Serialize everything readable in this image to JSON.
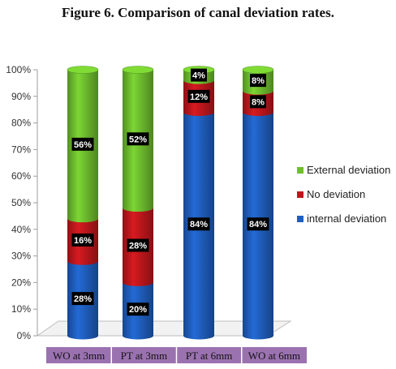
{
  "chart_data": {
    "type": "bar",
    "stacked": true,
    "title": "Figure 6. Comparison of canal deviation rates.",
    "categories": [
      "WO at 3mm",
      "PT at 3mm",
      "PT at 6mm",
      "WO at 6mm"
    ],
    "series": [
      {
        "name": "internal deviation",
        "color": "#1f5fbf",
        "values": [
          28,
          20,
          84,
          84
        ],
        "labels": [
          "28%",
          "20%",
          "84%",
          "84%"
        ]
      },
      {
        "name": "No deviation",
        "color": "#c0171d",
        "values": [
          16,
          28,
          12,
          8
        ],
        "labels": [
          "16%",
          "28%",
          "12%",
          "8%"
        ]
      },
      {
        "name": "External deviation",
        "color": "#6fbf2e",
        "values": [
          56,
          52,
          4,
          8
        ],
        "labels": [
          "56%",
          "52%",
          "4%",
          "8%"
        ]
      }
    ],
    "legend_order": [
      "External deviation",
      "No deviation",
      "internal deviation"
    ],
    "y_ticks": [
      "0%",
      "10%",
      "20%",
      "30%",
      "40%",
      "50%",
      "60%",
      "70%",
      "80%",
      "90%",
      "100%"
    ],
    "ylim": [
      0,
      100
    ],
    "legend_position": "right",
    "category_band_color": "#9b72b0",
    "grid": false
  }
}
